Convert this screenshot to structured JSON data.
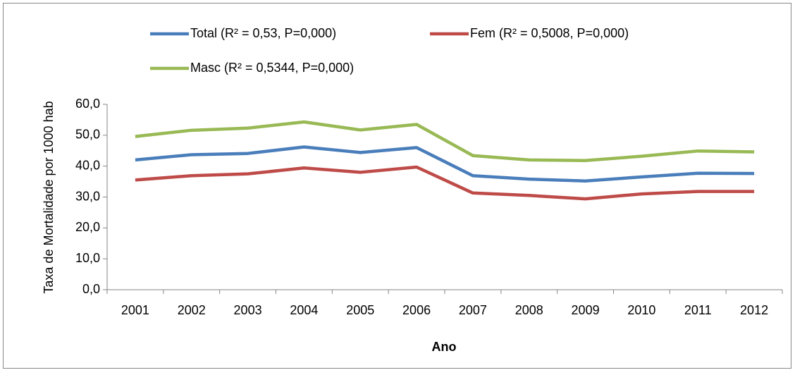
{
  "chart_data": {
    "type": "line",
    "x_label": "Ano",
    "y_label": "Taxa de Mortalidade por 1000 hab",
    "categories": [
      "2001",
      "2002",
      "2003",
      "2004",
      "2005",
      "2006",
      "2007",
      "2008",
      "2009",
      "2010",
      "2011",
      "2012"
    ],
    "series": [
      {
        "name": "Total (R² = 0,53, P=0,000)",
        "color": "#4a7ebb",
        "values": [
          42.0,
          43.7,
          44.1,
          46.2,
          44.4,
          46.0,
          36.9,
          35.8,
          35.2,
          36.5,
          37.7,
          37.6
        ]
      },
      {
        "name": "Fem (R² = 0,5008, P=0,000)",
        "color": "#be4b48",
        "values": [
          35.5,
          36.9,
          37.5,
          39.4,
          38.0,
          39.7,
          31.3,
          30.5,
          29.4,
          31.0,
          31.8,
          31.8
        ]
      },
      {
        "name": "Masc (R² = 0,5344, P=0,000)",
        "color": "#98b954",
        "values": [
          49.6,
          51.6,
          52.3,
          54.3,
          51.7,
          53.5,
          43.4,
          42.0,
          41.8,
          43.2,
          44.9,
          44.6
        ]
      }
    ],
    "ylim": [
      0,
      60
    ],
    "yticks": [
      {
        "value": 0,
        "label": "0,0"
      },
      {
        "value": 10,
        "label": "10,0"
      },
      {
        "value": 20,
        "label": "20,0"
      },
      {
        "value": 30,
        "label": "30,0"
      },
      {
        "value": 40,
        "label": "40,0"
      },
      {
        "value": 50,
        "label": "50,0"
      },
      {
        "value": 60,
        "label": "60,0"
      }
    ],
    "legend": "top"
  }
}
